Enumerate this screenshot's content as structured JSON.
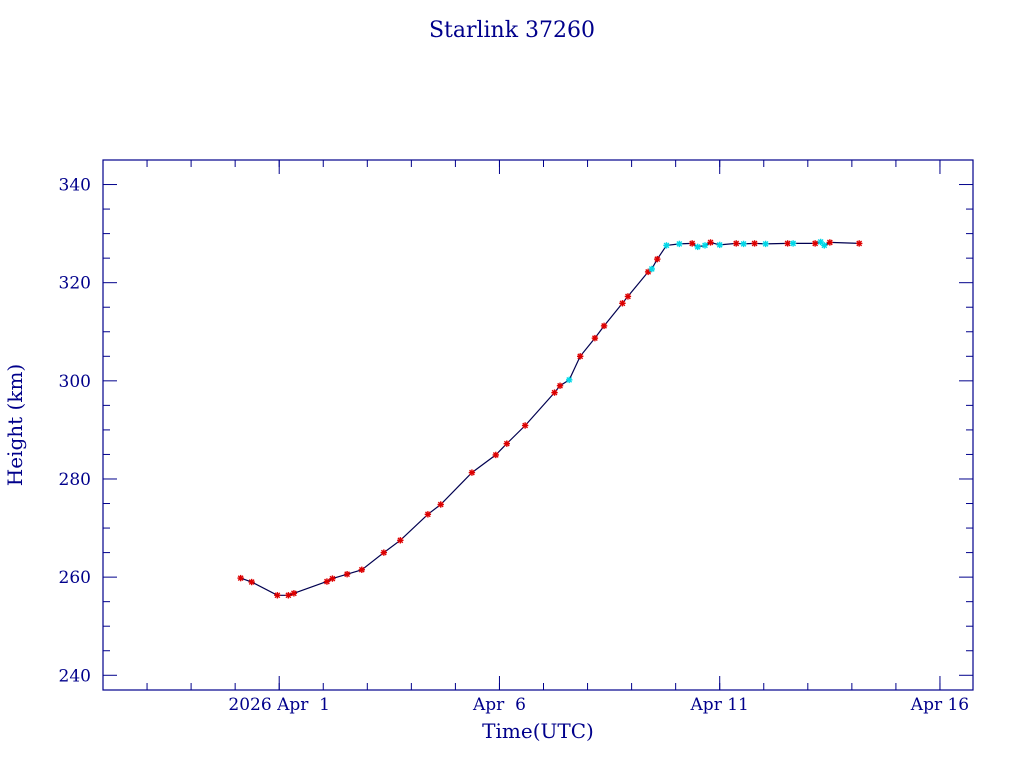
{
  "chart_data": {
    "type": "line",
    "title": "Starlink 37260",
    "xlabel": "Time(UTC)",
    "ylabel": "Height (km)",
    "xlim": [
      "2026-03-28T00:00",
      "2026-04-16T18:00"
    ],
    "ylim": [
      237,
      345
    ],
    "yticks": [
      240,
      260,
      280,
      300,
      320,
      340
    ],
    "xticks": [
      {
        "label": "2026 Apr  1",
        "t": "2026-04-01T00:00"
      },
      {
        "label": "Apr  6",
        "t": "2026-04-06T00:00"
      },
      {
        "label": "Apr 11",
        "t": "2026-04-11T00:00"
      },
      {
        "label": "Apr 16",
        "t": "2026-04-16T00:00"
      }
    ],
    "colors": {
      "frame": "#00008b",
      "line": "#000050",
      "primary_marker": "#dd0000",
      "secondary_marker": "#00d8e8"
    },
    "series": [
      {
        "marker": "red-star",
        "points": [
          [
            "2026-03-31T03:00",
            259.8
          ],
          [
            "2026-03-31T09:00",
            259.0
          ],
          [
            "2026-03-31T23:00",
            256.3
          ],
          [
            "2026-04-01T05:00",
            256.3
          ],
          [
            "2026-04-01T08:00",
            256.7
          ],
          [
            "2026-04-02T02:00",
            259.1
          ],
          [
            "2026-04-02T05:00",
            259.7
          ],
          [
            "2026-04-02T13:00",
            260.6
          ],
          [
            "2026-04-02T21:00",
            261.5
          ],
          [
            "2026-04-03T09:00",
            265.0
          ],
          [
            "2026-04-03T18:00",
            267.5
          ],
          [
            "2026-04-04T09:00",
            272.8
          ],
          [
            "2026-04-04T16:00",
            274.8
          ],
          [
            "2026-04-05T09:00",
            281.3
          ],
          [
            "2026-04-05T22:00",
            284.9
          ],
          [
            "2026-04-06T04:00",
            287.2
          ],
          [
            "2026-04-06T14:00",
            290.9
          ],
          [
            "2026-04-07T06:00",
            297.6
          ],
          [
            "2026-04-07T09:00",
            299.0
          ],
          [
            "2026-04-07T20:00",
            305.0
          ],
          [
            "2026-04-08T04:00",
            308.7
          ],
          [
            "2026-04-08T09:00",
            311.2
          ],
          [
            "2026-04-08T19:00",
            315.8
          ],
          [
            "2026-04-08T22:00",
            317.2
          ],
          [
            "2026-04-09T09:00",
            322.2
          ],
          [
            "2026-04-09T14:00",
            324.8
          ],
          [
            "2026-04-10T09:00",
            328.0
          ],
          [
            "2026-04-10T19:00",
            328.2
          ],
          [
            "2026-04-11T09:00",
            328.0
          ],
          [
            "2026-04-11T19:00",
            328.0
          ],
          [
            "2026-04-12T13:00",
            328.0
          ],
          [
            "2026-04-13T04:00",
            328.0
          ],
          [
            "2026-04-13T12:00",
            328.2
          ],
          [
            "2026-04-14T04:00",
            328.0
          ]
        ]
      },
      {
        "marker": "cyan-star",
        "points": [
          [
            "2026-04-07T14:00",
            300.2
          ],
          [
            "2026-04-09T11:00",
            322.8
          ],
          [
            "2026-04-09T19:00",
            327.6
          ],
          [
            "2026-04-10T02:00",
            327.9
          ],
          [
            "2026-04-10T12:00",
            327.3
          ],
          [
            "2026-04-10T16:00",
            327.6
          ],
          [
            "2026-04-11T00:00",
            327.7
          ],
          [
            "2026-04-11T13:00",
            327.9
          ],
          [
            "2026-04-12T01:00",
            327.9
          ],
          [
            "2026-04-12T16:00",
            328.0
          ],
          [
            "2026-04-13T07:00",
            328.3
          ],
          [
            "2026-04-13T09:00",
            327.6
          ]
        ]
      }
    ]
  }
}
